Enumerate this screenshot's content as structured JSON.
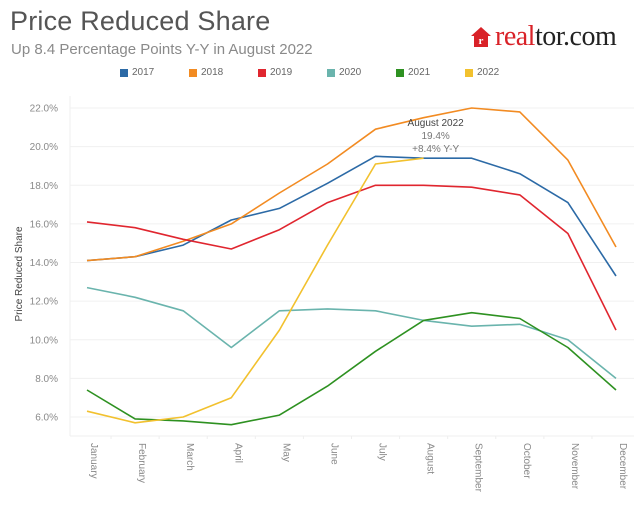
{
  "header": {
    "title": "Price Reduced Share",
    "subtitle": "Up 8.4 Percentage Points Y-Y in August 2022"
  },
  "logo": {
    "part1": "real",
    "part2": "tor.com",
    "icon": "house-r-icon",
    "color": "#d92228"
  },
  "chart_data": {
    "type": "line",
    "title": "Price Reduced Share",
    "subtitle": "Up 8.4 Percentage Points Y-Y in August 2022",
    "xlabel": "",
    "ylabel": "Price Reduced Share",
    "categories": [
      "January",
      "February",
      "March",
      "April",
      "May",
      "June",
      "July",
      "August",
      "September",
      "October",
      "November",
      "December"
    ],
    "ylim": [
      5.5,
      22.5
    ],
    "yticks": [
      6,
      8,
      10,
      12,
      14,
      16,
      18,
      20,
      22
    ],
    "ytick_labels": [
      "6.0%",
      "8.0%",
      "10.0%",
      "12.0%",
      "14.0%",
      "16.0%",
      "18.0%",
      "20.0%",
      "22.0%"
    ],
    "grid": true,
    "legend": "top",
    "series": [
      {
        "name": "2017",
        "color": "#2c6aa6",
        "values": [
          14.1,
          14.3,
          14.9,
          16.2,
          16.8,
          18.1,
          19.5,
          19.4,
          19.4,
          18.6,
          17.1,
          13.3
        ]
      },
      {
        "name": "2018",
        "color": "#f28b22",
        "values": [
          14.1,
          14.3,
          15.1,
          16.0,
          17.6,
          19.1,
          20.9,
          21.5,
          22.0,
          21.8,
          19.3,
          14.8
        ]
      },
      {
        "name": "2019",
        "color": "#e0262f",
        "values": [
          16.1,
          15.8,
          15.2,
          14.7,
          15.7,
          17.1,
          18.0,
          18.0,
          17.9,
          17.5,
          15.5,
          10.5
        ]
      },
      {
        "name": "2020",
        "color": "#6ab4ad",
        "values": [
          12.7,
          12.2,
          11.5,
          9.6,
          11.5,
          11.6,
          11.5,
          11.0,
          10.7,
          10.8,
          10.0,
          8.0
        ]
      },
      {
        "name": "2021",
        "color": "#2e9121",
        "values": [
          7.4,
          5.9,
          5.8,
          5.6,
          6.1,
          7.6,
          9.4,
          11.0,
          11.4,
          11.1,
          9.6,
          7.4
        ]
      },
      {
        "name": "2022",
        "color": "#f2c12e",
        "values": [
          6.3,
          5.7,
          6.0,
          7.0,
          10.5,
          14.9,
          19.1,
          19.4
        ]
      }
    ],
    "annotation": {
      "title": "August 2022",
      "value": "19.4%",
      "change": "+8.4% Y-Y",
      "category": "August",
      "series": "2022"
    }
  }
}
